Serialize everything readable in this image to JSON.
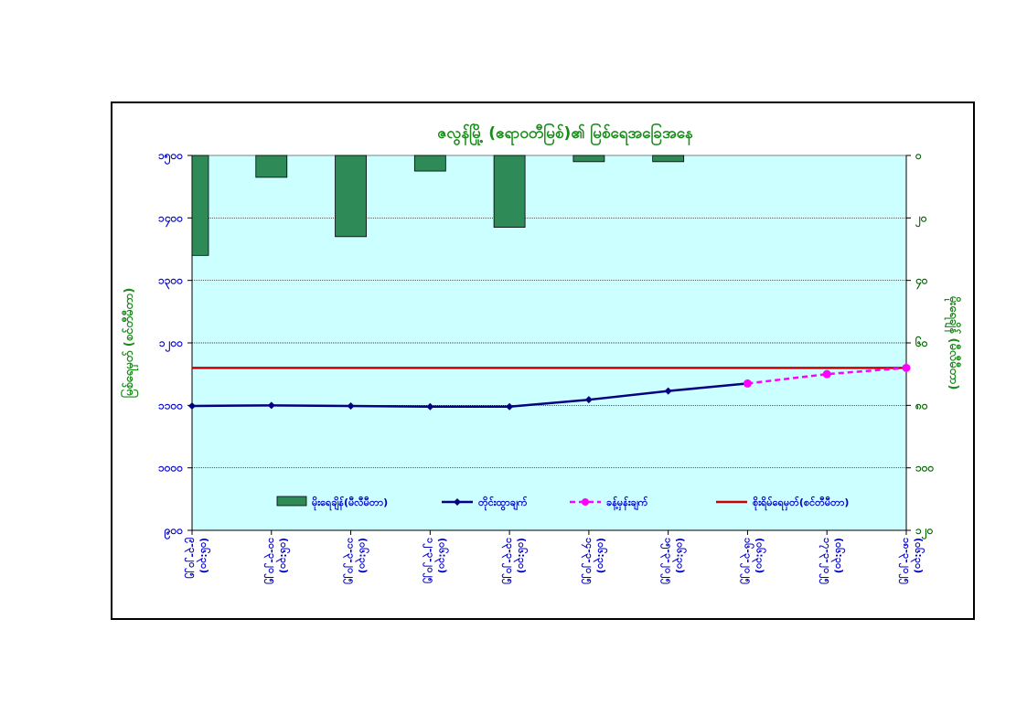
{
  "chart_data": {
    "title": "ဇလွန်မြို့ (ဧရာဝတီမြစ်)၏ မြစ်ရေအခြေအနေ",
    "type": "bar+line",
    "x_labels": [
      [
        "၉-၃-၂၀၂၅",
        "(၀၆:၃၀)"
      ],
      [
        "၁၀-၃-၂၀၂၅",
        "(၀၆:၃၀)"
      ],
      [
        "၁၁-၃-၂၀၂၅",
        "(၀၆:၃၀)"
      ],
      [
        "၁၂-၃-၂၀၂၅",
        "(၀၆:၃၀)"
      ],
      [
        "၁၃-၃-၂၀၂၅",
        "(၀၆:၃၀)"
      ],
      [
        "၁၄-၃-၂၀၂၅",
        "(၀၆:၃၀)"
      ],
      [
        "၁၅-၃-၂၀၂၅",
        "(၀၆:၃၀)"
      ],
      [
        "၁၆-၃-၂၀၂၅",
        "(၀၆:၃၀)"
      ],
      [
        "၁၇-၃-၂၀၂၅",
        "(၀၆:၃၀)"
      ],
      [
        "၁၈-၃-၂၀၂၅",
        "(၀၆:၃၀)"
      ]
    ],
    "left_axis": {
      "label": "မြစ်ရေမှတ် (စင်တီမီတာ)",
      "min": 900,
      "max": 1500,
      "ticks": [
        900,
        1000,
        1100,
        1200,
        1300,
        1400,
        1500
      ],
      "tick_labels": [
        "၉၀၀",
        "၁၀၀၀",
        "၁၁၀၀",
        "၁၂၀၀",
        "၁၃၀၀",
        "၁၄၀၀",
        "၁၅၀၀"
      ]
    },
    "right_axis": {
      "label": "မိုးရေချိန် (မီလီမီတာ)",
      "min": 0,
      "max": 120,
      "inverted": true,
      "ticks": [
        0,
        20,
        40,
        60,
        80,
        100,
        120
      ],
      "tick_labels": [
        "၀",
        "၂၀",
        "၄၀",
        "၆၀",
        "၈၀",
        "၁၀၀",
        "၁၂၀"
      ]
    },
    "series": [
      {
        "name": "မိုးရေချိန်(မီလီမီတာ)",
        "kind": "bar",
        "axis": "right",
        "color": "#2e8b57",
        "values": [
          32,
          7,
          26,
          5,
          23,
          2,
          2,
          null,
          null,
          null
        ]
      },
      {
        "name": "တိုင်းထွာချက်",
        "kind": "line",
        "axis": "left",
        "color": "#000080",
        "values": [
          1099,
          1100,
          1099,
          1098,
          1098,
          1109,
          1123,
          1135,
          null,
          null
        ]
      },
      {
        "name": "ခန့်မှန်းချက်",
        "kind": "dashed-line",
        "axis": "left",
        "color": "#ff00ff",
        "values": [
          null,
          null,
          null,
          null,
          null,
          null,
          null,
          1135,
          1150,
          1160
        ]
      },
      {
        "name": "စိုးရိမ်ရေမှတ်(စင်တီမီတာ)",
        "kind": "hline",
        "axis": "left",
        "color": "#cc0000",
        "value": 1160
      }
    ],
    "grid": true,
    "plot_background": "#ccffff",
    "legend_position": "bottom-inside"
  }
}
